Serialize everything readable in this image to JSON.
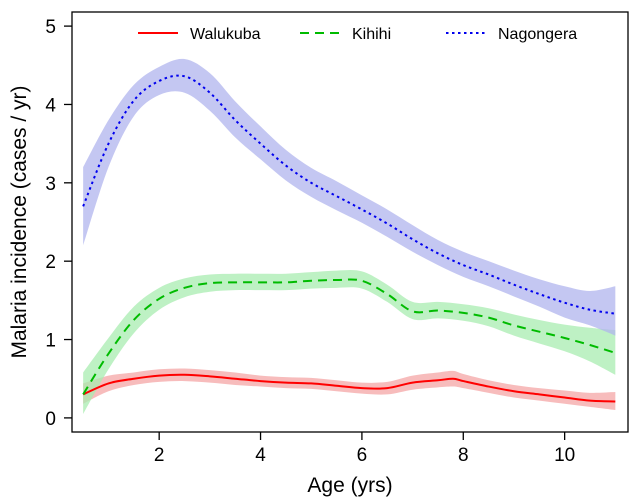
{
  "chart_data": {
    "type": "line",
    "title": "",
    "xlabel": "Age (yrs)",
    "ylabel": "Malaria incidence (cases / yr)",
    "xlim": [
      0.5,
      11
    ],
    "ylim": [
      0,
      5
    ],
    "x_ticks": [
      2,
      4,
      6,
      8,
      10
    ],
    "y_ticks": [
      0,
      1,
      2,
      3,
      4,
      5
    ],
    "grid": false,
    "legend_position": "top",
    "series": [
      {
        "name": "Walukuba",
        "color": "#ff0000",
        "band_color": "#f4a6a6",
        "line_style": "solid",
        "x": [
          0.5,
          1.0,
          1.5,
          2.0,
          2.5,
          3.0,
          3.5,
          4.0,
          4.5,
          5.0,
          5.5,
          6.0,
          6.5,
          7.0,
          7.5,
          7.8,
          8.0,
          8.5,
          9.0,
          9.5,
          10.0,
          10.5,
          11.0
        ],
        "y": [
          0.3,
          0.44,
          0.5,
          0.54,
          0.55,
          0.53,
          0.5,
          0.47,
          0.45,
          0.44,
          0.41,
          0.38,
          0.38,
          0.45,
          0.48,
          0.5,
          0.47,
          0.4,
          0.34,
          0.3,
          0.26,
          0.22,
          0.21
        ],
        "lower": [
          0.18,
          0.34,
          0.42,
          0.46,
          0.47,
          0.45,
          0.42,
          0.4,
          0.38,
          0.37,
          0.34,
          0.31,
          0.3,
          0.36,
          0.39,
          0.4,
          0.38,
          0.32,
          0.26,
          0.22,
          0.18,
          0.14,
          0.1
        ],
        "upper": [
          0.44,
          0.54,
          0.58,
          0.62,
          0.63,
          0.61,
          0.58,
          0.54,
          0.52,
          0.51,
          0.48,
          0.45,
          0.46,
          0.54,
          0.58,
          0.6,
          0.56,
          0.48,
          0.42,
          0.38,
          0.35,
          0.32,
          0.33
        ]
      },
      {
        "name": "Kihihi",
        "color": "#00bb00",
        "band_color": "#a8ecb0",
        "line_style": "dashed",
        "x": [
          0.5,
          1.0,
          1.5,
          2.0,
          2.5,
          3.0,
          3.5,
          4.0,
          4.5,
          5.0,
          5.5,
          6.0,
          6.5,
          7.0,
          7.5,
          8.0,
          8.5,
          9.0,
          9.5,
          10.0,
          10.5,
          11.0
        ],
        "y": [
          0.3,
          0.82,
          1.25,
          1.52,
          1.66,
          1.72,
          1.73,
          1.73,
          1.73,
          1.75,
          1.76,
          1.75,
          1.58,
          1.36,
          1.37,
          1.34,
          1.28,
          1.18,
          1.1,
          1.02,
          0.93,
          0.83
        ],
        "lower": [
          0.05,
          0.62,
          1.08,
          1.38,
          1.54,
          1.61,
          1.63,
          1.63,
          1.63,
          1.65,
          1.66,
          1.65,
          1.48,
          1.26,
          1.27,
          1.24,
          1.17,
          1.05,
          0.95,
          0.85,
          0.72,
          0.55
        ],
        "upper": [
          0.58,
          1.02,
          1.42,
          1.66,
          1.78,
          1.83,
          1.84,
          1.84,
          1.84,
          1.86,
          1.88,
          1.87,
          1.7,
          1.48,
          1.48,
          1.45,
          1.4,
          1.32,
          1.25,
          1.19,
          1.15,
          1.12
        ]
      },
      {
        "name": "Nagongera",
        "color": "#0000ee",
        "band_color": "#b0b4ee",
        "line_style": "dotted",
        "x": [
          0.5,
          1.0,
          1.5,
          2.0,
          2.5,
          3.0,
          3.5,
          4.0,
          4.5,
          5.0,
          5.5,
          6.0,
          6.5,
          7.0,
          7.5,
          8.0,
          8.5,
          9.0,
          9.5,
          10.0,
          10.5,
          11.0
        ],
        "y": [
          2.7,
          3.5,
          4.05,
          4.3,
          4.36,
          4.15,
          3.8,
          3.5,
          3.22,
          3.0,
          2.83,
          2.66,
          2.48,
          2.28,
          2.1,
          1.95,
          1.83,
          1.7,
          1.58,
          1.47,
          1.38,
          1.33
        ],
        "lower": [
          2.2,
          3.2,
          3.85,
          4.12,
          4.15,
          3.92,
          3.58,
          3.3,
          3.03,
          2.82,
          2.65,
          2.49,
          2.31,
          2.12,
          1.95,
          1.8,
          1.68,
          1.55,
          1.42,
          1.28,
          1.18,
          1.05
        ],
        "upper": [
          3.2,
          3.8,
          4.25,
          4.48,
          4.58,
          4.4,
          4.04,
          3.72,
          3.42,
          3.19,
          3.02,
          2.84,
          2.66,
          2.46,
          2.27,
          2.12,
          2.0,
          1.88,
          1.77,
          1.68,
          1.62,
          1.68
        ]
      }
    ]
  }
}
